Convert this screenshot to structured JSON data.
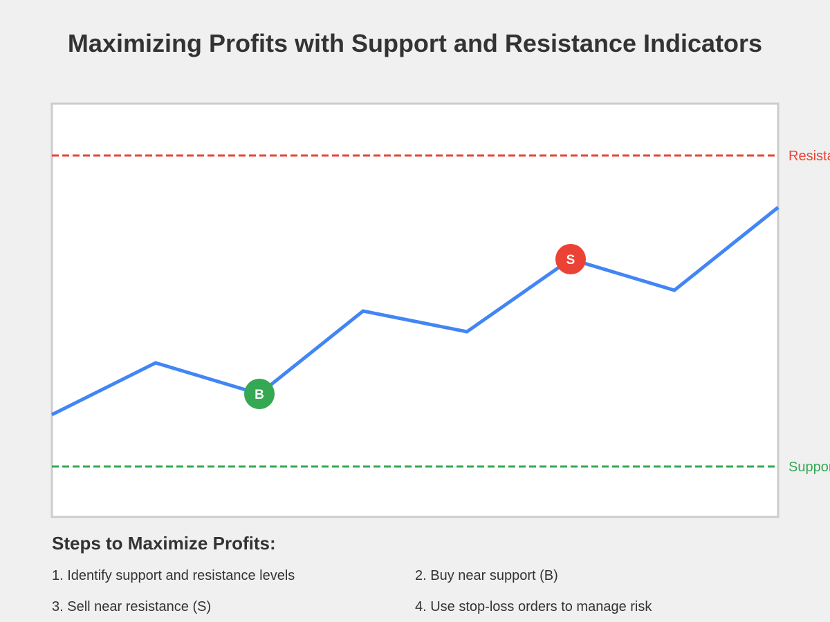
{
  "title": "Maximizing Profits with Support and Resistance Indicators",
  "colors": {
    "background": "#f0f0f0",
    "chart_background": "#ffffff",
    "chart_border": "#cccccc",
    "price_line": "#4285f4",
    "resistance": "#ea4335",
    "support": "#34a853",
    "text": "#333333"
  },
  "chart_data": {
    "type": "line",
    "title": "",
    "xlabel": "",
    "ylabel": "",
    "ylim": [
      0,
      200
    ],
    "x": [
      0,
      1,
      2,
      3,
      4,
      5,
      6,
      7
    ],
    "series": [
      {
        "values": [
          50,
          75,
          60,
          100,
          90,
          125,
          110,
          150
        ]
      }
    ],
    "levels": [
      {
        "label": "Resistance",
        "value": 175,
        "color": "#ea4335",
        "style": "dashed"
      },
      {
        "label": "Support",
        "value": 25,
        "color": "#34a853",
        "style": "dashed"
      }
    ],
    "markers": [
      {
        "label": "B",
        "x": 2,
        "y": 60,
        "color": "#34a853"
      },
      {
        "label": "S",
        "x": 5,
        "y": 125,
        "color": "#ea4335"
      }
    ],
    "grid": false
  },
  "steps": {
    "heading": "Steps to Maximize Profits:",
    "items": [
      "1. Identify support and resistance levels",
      "2. Buy near support (B)",
      "3. Sell near resistance (S)",
      "4. Use stop-loss orders to manage risk"
    ]
  }
}
